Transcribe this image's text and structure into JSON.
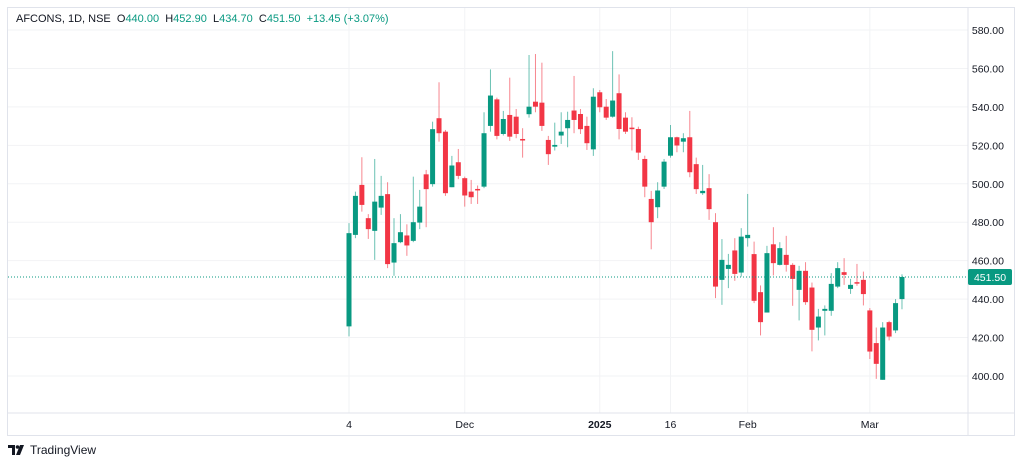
{
  "legend": {
    "symbol": "AFCONS, 1D, NSE",
    "o_label": "O",
    "open": "440.00",
    "h_label": "H",
    "high": "452.90",
    "l_label": "L",
    "low": "434.70",
    "c_label": "C",
    "close": "451.50",
    "change": "+13.45 (+3.07%)"
  },
  "footer": {
    "brand": "TradingView",
    "logo_icon": "tradingview-logo-icon"
  },
  "colors": {
    "up": "#089981",
    "down": "#f23645",
    "grid": "#f2f3f5",
    "text": "#131722"
  },
  "chart_data": {
    "type": "candlestick",
    "title": "AFCONS, 1D, NSE",
    "ylim": [
      380,
      590
    ],
    "yticks": [
      "580.00",
      "560.00",
      "540.00",
      "520.00",
      "500.00",
      "480.00",
      "460.00",
      "440.00",
      "420.00",
      "400.00"
    ],
    "xticks": [
      {
        "index": 1,
        "label": "4",
        "bold": false
      },
      {
        "index": 19,
        "label": "Dec",
        "bold": false
      },
      {
        "index": 40,
        "label": "2025",
        "bold": true
      },
      {
        "index": 51,
        "label": "16",
        "bold": false
      },
      {
        "index": 63,
        "label": "Feb",
        "bold": false
      },
      {
        "index": 82,
        "label": "Mar",
        "bold": false
      }
    ],
    "last_price": "451.50",
    "last_value": 451.5,
    "ohlc": [
      [
        425.8,
        479.5,
        420.6,
        474.3
      ],
      [
        473.4,
        495.9,
        471.7,
        493.7
      ],
      [
        499.4,
        513.8,
        485.5,
        489.0
      ],
      [
        482.1,
        484.2,
        471.3,
        476.4
      ],
      [
        475.5,
        512.9,
        460.4,
        490.7
      ],
      [
        487.6,
        504.1,
        483.8,
        493.7
      ],
      [
        494.6,
        500.8,
        456.1,
        458.2
      ],
      [
        459.0,
        482.1,
        452.1,
        469.1
      ],
      [
        469.6,
        484.2,
        469.1,
        474.8
      ],
      [
        473.1,
        478.9,
        462.5,
        467.9
      ],
      [
        470.3,
        503.7,
        469.6,
        480.0
      ],
      [
        479.8,
        496.8,
        476.4,
        488.1
      ],
      [
        504.9,
        507.2,
        477.4,
        497.2
      ],
      [
        499.8,
        532.3,
        498.5,
        528.4
      ],
      [
        534.1,
        552.8,
        521.9,
        526.3
      ],
      [
        527.1,
        528.0,
        493.7,
        495.1
      ],
      [
        498.2,
        514.5,
        498.2,
        509.5
      ],
      [
        511.2,
        518.1,
        502.4,
        504.1
      ],
      [
        502.9,
        503.7,
        488.1,
        493.9
      ],
      [
        495.9,
        502.0,
        489.5,
        493.0
      ],
      [
        497.3,
        499.1,
        489.5,
        496.8
      ],
      [
        498.5,
        537.2,
        497.7,
        526.3
      ],
      [
        530.1,
        559.5,
        527.1,
        545.9
      ],
      [
        543.9,
        544.8,
        523.1,
        524.9
      ],
      [
        525.9,
        537.9,
        525.1,
        533.7
      ],
      [
        535.8,
        555.2,
        522.3,
        524.5
      ],
      [
        534.9,
        538.9,
        523.7,
        525.9
      ],
      [
        523.3,
        528.9,
        513.6,
        522.5
      ],
      [
        536.2,
        567.0,
        534.4,
        540.1
      ],
      [
        542.7,
        567.5,
        537.2,
        540.1
      ],
      [
        542.2,
        563.0,
        527.5,
        530.1
      ],
      [
        522.8,
        524.9,
        509.8,
        515.4
      ],
      [
        519.3,
        531.8,
        517.3,
        520.2
      ],
      [
        525.1,
        537.2,
        520.7,
        527.1
      ],
      [
        528.9,
        537.5,
        519.0,
        533.2
      ],
      [
        538.1,
        556.1,
        526.3,
        533.2
      ],
      [
        536.3,
        538.9,
        525.9,
        528.4
      ],
      [
        530.1,
        534.9,
        517.6,
        521.1
      ],
      [
        517.9,
        549.7,
        514.5,
        545.3
      ],
      [
        547.6,
        548.8,
        537.2,
        539.8
      ],
      [
        540.1,
        544.1,
        533.2,
        534.4
      ],
      [
        534.9,
        569.0,
        534.4,
        543.3
      ],
      [
        547.1,
        556.9,
        523.1,
        528.5
      ],
      [
        534.4,
        537.2,
        525.9,
        527.1
      ],
      [
        529.2,
        534.6,
        517.3,
        528.4
      ],
      [
        528.5,
        529.7,
        512.4,
        516.2
      ],
      [
        512.9,
        514.6,
        493.0,
        498.5
      ],
      [
        492.1,
        496.3,
        465.9,
        480.0
      ],
      [
        487.8,
        500.8,
        482.1,
        496.5
      ],
      [
        498.5,
        512.9,
        497.3,
        511.5
      ],
      [
        514.6,
        530.6,
        513.6,
        524.2
      ],
      [
        524.2,
        524.5,
        516.4,
        519.9
      ],
      [
        521.9,
        526.3,
        516.4,
        523.7
      ],
      [
        524.2,
        537.9,
        503.4,
        506.0
      ],
      [
        510.2,
        513.6,
        494.7,
        497.2
      ],
      [
        495.1,
        509.8,
        494.2,
        496.3
      ],
      [
        497.7,
        505.0,
        481.2,
        486.8
      ],
      [
        480.0,
        484.7,
        440.5,
        446.5
      ],
      [
        450.0,
        471.2,
        437.0,
        460.4
      ],
      [
        455.7,
        463.5,
        445.7,
        457.8
      ],
      [
        465.3,
        471.7,
        449.5,
        453.1
      ],
      [
        453.8,
        476.9,
        451.7,
        472.5
      ],
      [
        471.7,
        494.7,
        467.3,
        473.4
      ],
      [
        463.4,
        469.9,
        437.9,
        439.1
      ],
      [
        443.6,
        447.1,
        421.1,
        428.0
      ],
      [
        433.0,
        467.7,
        433.0,
        463.9
      ],
      [
        468.5,
        477.4,
        452.3,
        458.7
      ],
      [
        457.8,
        469.6,
        457.5,
        466.5
      ],
      [
        463.0,
        472.9,
        454.3,
        457.8
      ],
      [
        457.8,
        458.7,
        436.5,
        450.5
      ],
      [
        444.8,
        457.3,
        428.9,
        454.7
      ],
      [
        454.7,
        459.2,
        437.0,
        438.4
      ],
      [
        446.0,
        448.6,
        412.8,
        424.0
      ],
      [
        425.2,
        434.9,
        418.5,
        430.9
      ],
      [
        433.9,
        436.7,
        421.1,
        434.9
      ],
      [
        433.9,
        453.5,
        431.3,
        447.9
      ],
      [
        446.5,
        459.2,
        445.7,
        456.1
      ],
      [
        454.0,
        461.3,
        447.4,
        452.6
      ],
      [
        445.3,
        450.5,
        442.7,
        447.4
      ],
      [
        448.8,
        458.3,
        446.9,
        448.3
      ],
      [
        450.0,
        454.3,
        436.7,
        442.6
      ],
      [
        434.1,
        435.3,
        408.8,
        412.7
      ],
      [
        417.1,
        425.2,
        398.5,
        406.3
      ],
      [
        398.0,
        428.0,
        398.0,
        425.2
      ],
      [
        428.0,
        428.7,
        418.5,
        420.5
      ],
      [
        423.7,
        440.0,
        422.3,
        437.9
      ],
      [
        440.0,
        452.9,
        434.7,
        451.5
      ]
    ]
  }
}
